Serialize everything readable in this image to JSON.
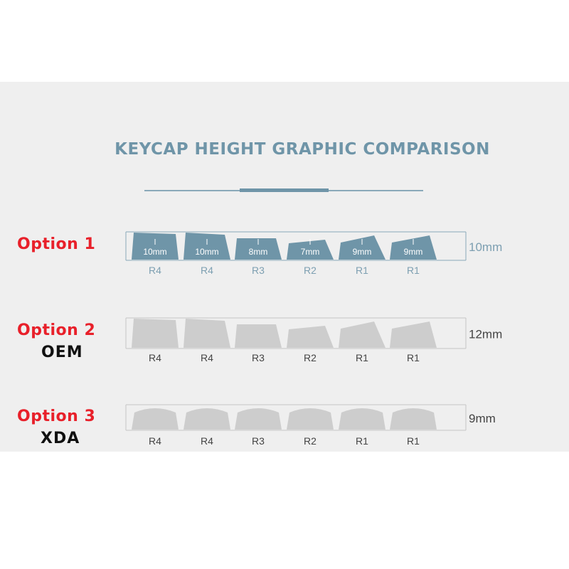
{
  "title": "KEYCAP HEIGHT GRAPHIC COMPARISON",
  "colors": {
    "accent": "#6f95a8",
    "option_red": "#e8202a",
    "cap_blue": "#6f95a8",
    "cap_gray": "#cdcdcd"
  },
  "options": [
    {
      "label": "Option 1",
      "sub": "",
      "height_label": "10mm",
      "height_mm": 10,
      "style": "blue",
      "keys": [
        {
          "row": "R4",
          "inner": "10mm"
        },
        {
          "row": "R4",
          "inner": "10mm"
        },
        {
          "row": "R3",
          "inner": "8mm"
        },
        {
          "row": "R2",
          "inner": "7mm"
        },
        {
          "row": "R1",
          "inner": "9mm"
        },
        {
          "row": "R1",
          "inner": "9mm"
        }
      ]
    },
    {
      "label": "Option 2",
      "sub": "OEM",
      "height_label": "12mm",
      "height_mm": 12,
      "style": "gray",
      "keys": [
        {
          "row": "R4"
        },
        {
          "row": "R4"
        },
        {
          "row": "R3"
        },
        {
          "row": "R2"
        },
        {
          "row": "R1"
        },
        {
          "row": "R1"
        }
      ]
    },
    {
      "label": "Option 3",
      "sub": "XDA",
      "height_label": "9mm",
      "height_mm": 9,
      "style": "xda",
      "keys": [
        {
          "row": "R4"
        },
        {
          "row": "R4"
        },
        {
          "row": "R3"
        },
        {
          "row": "R2"
        },
        {
          "row": "R1"
        },
        {
          "row": "R1"
        }
      ]
    }
  ]
}
